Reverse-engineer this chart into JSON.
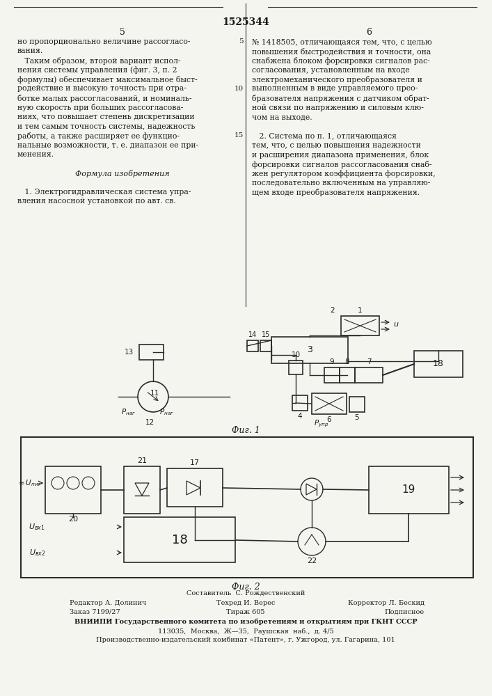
{
  "page_title": "1525344",
  "col_left_num": "5",
  "col_right_num": "6",
  "text_left": [
    "но пропорционально величине рассогласо-",
    "вания.",
    "   Таким образом, второй вариант испол-",
    "нения системы управления (фиг. 3, п. 2",
    "формулы) обеспечивает максимальное быст-",
    "родействие и высокую точность при отра-",
    "ботке малых рассогласований, и номиналь-",
    "ную скорость при больших рассогласова-",
    "ниях, что повышает степень дискретизации",
    "и тем самым точность системы, надежность",
    "работы, а также расширяет ее функцио-",
    "нальные возможности, т. е. диапазон ее при-",
    "менения.",
    "",
    "         Формула изобретения",
    "",
    "   1. Электрогидравлическая система упра-",
    "вления насосной установкой по авт. св."
  ],
  "text_right": [
    "№ 1418505, отличающаяся тем, что, с целью",
    "повышения быстродействия и точности, она",
    "снабжена блоком форсировки сигналов рас-",
    "согласования, установленным на входе",
    "электромеханического преобразователя и",
    "выполненным в виде управляемого прео-",
    "бразователя напряжения с датчиком обрат-",
    "ной связи по напряжению и силовым клю-",
    "чом на выходе.",
    "",
    "   2. Система по п. 1, отличающаяся",
    "тем, что, с целью повышения надежности",
    "и расширения диапазона применения, блок",
    "форсировки сигналов рассогласования снаб-",
    "жен регулятором коэффициента форсировки,",
    "последовательно включенным на управляю-",
    "щем входе преобразователя напряжения."
  ],
  "fig1_caption": "Фиг. 1",
  "fig2_caption": "Фиг. 2",
  "footer_compositor": "Составитель  С. Рождественский",
  "footer_editor": "Редактор А. Долинич",
  "footer_techred": "Техред И. Верес",
  "footer_corrector": "Корректор Л. Бескид",
  "footer_order": "Заказ 7199/27",
  "footer_tirazh": "Тираж 605",
  "footer_podpisnoe": "Подписное",
  "footer_vniiipi": "ВНИИПИ Государственного комитета по изобретениям и открытиям при ГКНТ СССР",
  "footer_address": "113035,  Москва,  Ж—35,  Раушская  наб.,  д. 4/5",
  "footer_factory": "Производственно-издательский комбинат «Патент», г. Ужгород, ул. Гагарина, 101",
  "bg_color": "#f5f5f0",
  "text_color": "#1a1a1a",
  "diagram_color": "#2a2a2a"
}
